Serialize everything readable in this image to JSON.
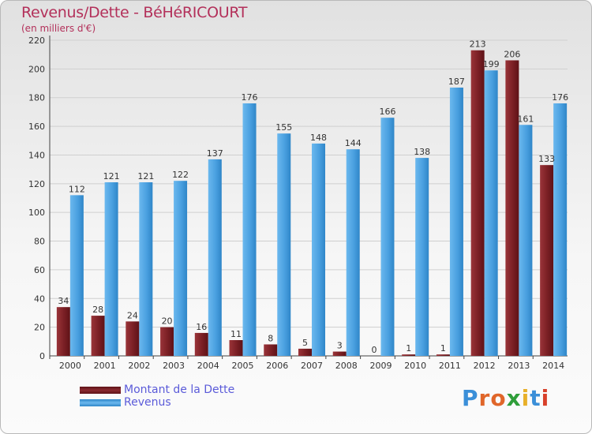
{
  "header": {
    "title": "Revenus/Dette - BéHéRICOURT",
    "subtitle": "(en milliers d'€)"
  },
  "legend": {
    "debt_label": "Montant de la Dette",
    "revenue_label": "Revenus"
  },
  "logo": {
    "letters": [
      "P",
      "r",
      "o",
      "x",
      "i",
      "t",
      "i"
    ],
    "colors": [
      "#3b8fd8",
      "#e0662a",
      "#e0662a",
      "#2f9e3a",
      "#e8b02a",
      "#3b8fd8",
      "#d8402a"
    ]
  },
  "colors": {
    "debt": "#7a1f24",
    "revenue": "#4aa0e0",
    "grid": "#cfcfcf",
    "axis_text": "#333333"
  },
  "chart_data": {
    "type": "bar",
    "categories": [
      "2000",
      "2001",
      "2002",
      "2003",
      "2004",
      "2005",
      "2006",
      "2007",
      "2008",
      "2009",
      "2010",
      "2011",
      "2012",
      "2013",
      "2014"
    ],
    "series": [
      {
        "name": "Montant de la Dette",
        "values": [
          34,
          28,
          24,
          20,
          16,
          11,
          8,
          5,
          3,
          0,
          1,
          1,
          213,
          206,
          133
        ]
      },
      {
        "name": "Revenus",
        "values": [
          112,
          121,
          121,
          122,
          137,
          176,
          155,
          148,
          144,
          166,
          138,
          187,
          199,
          161,
          176
        ]
      }
    ],
    "yticks": [
      "0",
      "20",
      "40",
      "60",
      "80",
      "100",
      "120",
      "140",
      "160",
      "180",
      "200",
      "220"
    ],
    "ylim": [
      0,
      220
    ],
    "grid": true,
    "legend_position": "bottom-left"
  }
}
